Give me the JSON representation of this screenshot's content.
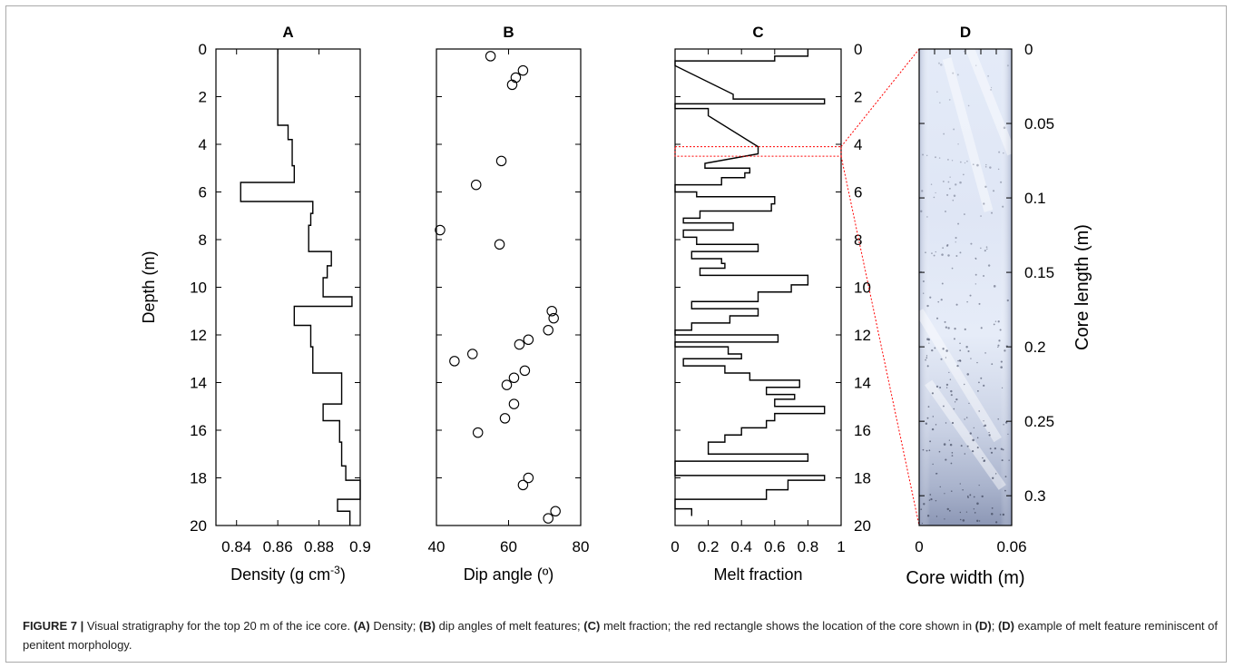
{
  "figure": {
    "caption": {
      "label": "FIGURE 7 |",
      "parts": [
        {
          "t": "Visual stratigraphy for the top 20 m of the ice core. ",
          "b": false
        },
        {
          "t": "(A)",
          "b": true
        },
        {
          "t": " Density; ",
          "b": false
        },
        {
          "t": "(B)",
          "b": true
        },
        {
          "t": " dip angles of melt features; ",
          "b": false
        },
        {
          "t": "(C)",
          "b": true
        },
        {
          "t": " melt fraction; the red rectangle shows the location of the core shown in ",
          "b": false
        },
        {
          "t": "(D)",
          "b": true
        },
        {
          "t": "; ",
          "b": false
        },
        {
          "t": "(D)",
          "b": true
        },
        {
          "t": " example of melt feature reminiscent of penitent morphology.",
          "b": false
        }
      ]
    }
  },
  "colors": {
    "line": "#000000",
    "highlight": "#ff0000",
    "core_light": "#e1e8f6",
    "core_dark": "#8e99b8"
  },
  "chart_data": [
    {
      "panel": "A",
      "type": "line",
      "title": "A",
      "xlabel": "Density (g cm",
      "xlabel_sup": "-3",
      "xlabel_close": ")",
      "ylabel": "Depth (m)",
      "xlim": [
        0.83,
        0.9
      ],
      "ylim": [
        0,
        20
      ],
      "y_reversed": true,
      "xticks": [
        "0.84",
        "0.86",
        "0.88",
        "0.9"
      ],
      "xtick_values": [
        0.84,
        0.86,
        0.88,
        0.9
      ],
      "yticks": [
        "0",
        "2",
        "4",
        "6",
        "8",
        "10",
        "12",
        "14",
        "16",
        "18",
        "20"
      ],
      "ytick_values": [
        0,
        2,
        4,
        6,
        8,
        10,
        12,
        14,
        16,
        18,
        20
      ],
      "step_profile": [
        {
          "top": 0,
          "bottom": 3.2,
          "value": 0.86
        },
        {
          "top": 3.2,
          "bottom": 3.8,
          "value": 0.865
        },
        {
          "top": 3.8,
          "bottom": 4.9,
          "value": 0.867
        },
        {
          "top": 4.9,
          "bottom": 5.6,
          "value": 0.868
        },
        {
          "top": 5.6,
          "bottom": 6.4,
          "value": 0.842
        },
        {
          "top": 6.4,
          "bottom": 6.9,
          "value": 0.877
        },
        {
          "top": 6.9,
          "bottom": 7.4,
          "value": 0.876
        },
        {
          "top": 7.4,
          "bottom": 8.5,
          "value": 0.875
        },
        {
          "top": 8.5,
          "bottom": 9.1,
          "value": 0.886
        },
        {
          "top": 9.1,
          "bottom": 9.6,
          "value": 0.884
        },
        {
          "top": 9.6,
          "bottom": 10.4,
          "value": 0.882
        },
        {
          "top": 10.4,
          "bottom": 10.8,
          "value": 0.896
        },
        {
          "top": 10.8,
          "bottom": 11.6,
          "value": 0.868
        },
        {
          "top": 11.6,
          "bottom": 12.5,
          "value": 0.876
        },
        {
          "top": 12.5,
          "bottom": 13.6,
          "value": 0.877
        },
        {
          "top": 13.6,
          "bottom": 14.9,
          "value": 0.891
        },
        {
          "top": 14.9,
          "bottom": 15.6,
          "value": 0.882
        },
        {
          "top": 15.6,
          "bottom": 16.5,
          "value": 0.89
        },
        {
          "top": 16.5,
          "bottom": 17.5,
          "value": 0.891
        },
        {
          "top": 17.5,
          "bottom": 18.1,
          "value": 0.893
        },
        {
          "top": 18.1,
          "bottom": 18.9,
          "value": 0.9
        },
        {
          "top": 18.9,
          "bottom": 19.4,
          "value": 0.889
        },
        {
          "top": 19.4,
          "bottom": 20,
          "value": 0.895
        }
      ]
    },
    {
      "panel": "B",
      "type": "scatter",
      "title": "B",
      "xlabel": "Dip angle (º)",
      "xlim": [
        40,
        80
      ],
      "ylim": [
        0,
        20
      ],
      "y_reversed": true,
      "xticks": [
        "40",
        "60",
        "80"
      ],
      "xtick_values": [
        40,
        60,
        80
      ],
      "ytick_values": [
        0,
        2,
        4,
        6,
        8,
        10,
        12,
        14,
        16,
        18,
        20
      ],
      "points": [
        {
          "x": 55,
          "y": 0.3
        },
        {
          "x": 64,
          "y": 0.9
        },
        {
          "x": 62,
          "y": 1.2
        },
        {
          "x": 61,
          "y": 1.5
        },
        {
          "x": 58,
          "y": 4.7
        },
        {
          "x": 51,
          "y": 5.7
        },
        {
          "x": 41,
          "y": 7.6
        },
        {
          "x": 57.5,
          "y": 8.2
        },
        {
          "x": 72,
          "y": 11.0
        },
        {
          "x": 72.5,
          "y": 11.3
        },
        {
          "x": 71,
          "y": 11.8
        },
        {
          "x": 65.5,
          "y": 12.2
        },
        {
          "x": 63,
          "y": 12.4
        },
        {
          "x": 50,
          "y": 12.8
        },
        {
          "x": 45,
          "y": 13.1
        },
        {
          "x": 64.5,
          "y": 13.5
        },
        {
          "x": 61.5,
          "y": 13.8
        },
        {
          "x": 59.5,
          "y": 14.1
        },
        {
          "x": 61.5,
          "y": 14.9
        },
        {
          "x": 59,
          "y": 15.5
        },
        {
          "x": 51.5,
          "y": 16.1
        },
        {
          "x": 65.5,
          "y": 18.0
        },
        {
          "x": 64,
          "y": 18.3
        },
        {
          "x": 73,
          "y": 19.4
        },
        {
          "x": 71,
          "y": 19.7
        }
      ]
    },
    {
      "panel": "C",
      "type": "line",
      "title": "C",
      "xlabel": "Melt fraction",
      "xlim": [
        0,
        1
      ],
      "ylim": [
        0,
        20
      ],
      "y_reversed": true,
      "xticks": [
        "0",
        "0.2",
        "0.4",
        "0.6",
        "0.8",
        "1"
      ],
      "xtick_values": [
        0,
        0.2,
        0.4,
        0.6,
        0.8,
        1
      ],
      "yticks": [
        "0",
        "2",
        "4",
        "6",
        "8",
        "10",
        "12",
        "14",
        "16",
        "18",
        "20"
      ],
      "ytick_values": [
        0,
        2,
        4,
        6,
        8,
        10,
        12,
        14,
        16,
        18,
        20
      ],
      "highlight_depth": [
        4.1,
        4.5
      ],
      "step_profile": [
        {
          "top": 0.0,
          "bottom": 0.3,
          "value": 0.8
        },
        {
          "top": 0.3,
          "bottom": 0.5,
          "value": 0.6
        },
        {
          "top": 0.5,
          "bottom": 0.7,
          "value": 0.0
        },
        {
          "top": 1.9,
          "bottom": 2.1,
          "value": 0.35
        },
        {
          "top": 2.1,
          "bottom": 2.3,
          "value": 0.9
        },
        {
          "top": 2.3,
          "bottom": 2.5,
          "value": 0.0
        },
        {
          "top": 2.5,
          "bottom": 2.8,
          "value": 0.2
        },
        {
          "top": 4.1,
          "bottom": 4.4,
          "value": 0.5
        },
        {
          "top": 4.8,
          "bottom": 5.0,
          "value": 0.18
        },
        {
          "top": 5.0,
          "bottom": 5.2,
          "value": 0.45
        },
        {
          "top": 5.2,
          "bottom": 5.4,
          "value": 0.42
        },
        {
          "top": 5.4,
          "bottom": 5.7,
          "value": 0.28
        },
        {
          "top": 5.7,
          "bottom": 6.0,
          "value": 0.0
        },
        {
          "top": 6.0,
          "bottom": 6.2,
          "value": 0.13
        },
        {
          "top": 6.2,
          "bottom": 6.5,
          "value": 0.6
        },
        {
          "top": 6.5,
          "bottom": 6.8,
          "value": 0.58
        },
        {
          "top": 6.8,
          "bottom": 7.1,
          "value": 0.15
        },
        {
          "top": 7.1,
          "bottom": 7.3,
          "value": 0.05
        },
        {
          "top": 7.3,
          "bottom": 7.6,
          "value": 0.35
        },
        {
          "top": 7.6,
          "bottom": 7.9,
          "value": 0.05
        },
        {
          "top": 7.9,
          "bottom": 8.2,
          "value": 0.13
        },
        {
          "top": 8.2,
          "bottom": 8.5,
          "value": 0.5
        },
        {
          "top": 8.5,
          "bottom": 8.8,
          "value": 0.1
        },
        {
          "top": 8.8,
          "bottom": 9.0,
          "value": 0.28
        },
        {
          "top": 9.0,
          "bottom": 9.2,
          "value": 0.3
        },
        {
          "top": 9.2,
          "bottom": 9.5,
          "value": 0.15
        },
        {
          "top": 9.5,
          "bottom": 9.9,
          "value": 0.8
        },
        {
          "top": 9.9,
          "bottom": 10.2,
          "value": 0.7
        },
        {
          "top": 10.2,
          "bottom": 10.6,
          "value": 0.5
        },
        {
          "top": 10.6,
          "bottom": 10.9,
          "value": 0.1
        },
        {
          "top": 10.9,
          "bottom": 11.2,
          "value": 0.5
        },
        {
          "top": 11.2,
          "bottom": 11.5,
          "value": 0.33
        },
        {
          "top": 11.5,
          "bottom": 11.8,
          "value": 0.1
        },
        {
          "top": 11.8,
          "bottom": 12.0,
          "value": 0.0
        },
        {
          "top": 12.0,
          "bottom": 12.3,
          "value": 0.62
        },
        {
          "top": 12.3,
          "bottom": 12.5,
          "value": 0.0
        },
        {
          "top": 12.5,
          "bottom": 12.8,
          "value": 0.32
        },
        {
          "top": 12.8,
          "bottom": 13.0,
          "value": 0.4
        },
        {
          "top": 13.0,
          "bottom": 13.3,
          "value": 0.05
        },
        {
          "top": 13.3,
          "bottom": 13.6,
          "value": 0.3
        },
        {
          "top": 13.6,
          "bottom": 13.9,
          "value": 0.45
        },
        {
          "top": 13.9,
          "bottom": 14.2,
          "value": 0.75
        },
        {
          "top": 14.2,
          "bottom": 14.5,
          "value": 0.55
        },
        {
          "top": 14.5,
          "bottom": 14.7,
          "value": 0.72
        },
        {
          "top": 14.7,
          "bottom": 15.0,
          "value": 0.6
        },
        {
          "top": 15.0,
          "bottom": 15.3,
          "value": 0.9
        },
        {
          "top": 15.3,
          "bottom": 15.6,
          "value": 0.6
        },
        {
          "top": 15.6,
          "bottom": 15.9,
          "value": 0.55
        },
        {
          "top": 15.9,
          "bottom": 16.2,
          "value": 0.4
        },
        {
          "top": 16.2,
          "bottom": 16.5,
          "value": 0.3
        },
        {
          "top": 16.5,
          "bottom": 17.0,
          "value": 0.2
        },
        {
          "top": 17.0,
          "bottom": 17.3,
          "value": 0.8
        },
        {
          "top": 17.3,
          "bottom": 17.6,
          "value": 0.0
        },
        {
          "top": 17.6,
          "bottom": 17.9,
          "value": 0.0
        },
        {
          "top": 17.9,
          "bottom": 18.1,
          "value": 0.9
        },
        {
          "top": 18.1,
          "bottom": 18.5,
          "value": 0.68
        },
        {
          "top": 18.5,
          "bottom": 18.9,
          "value": 0.55
        },
        {
          "top": 18.9,
          "bottom": 19.3,
          "value": 0.0
        },
        {
          "top": 19.3,
          "bottom": 19.6,
          "value": 0.1
        }
      ]
    },
    {
      "panel": "D",
      "type": "image",
      "title": "D",
      "xlabel": "Core width (m)",
      "ylabel": "Core length (m)",
      "xlim": [
        0,
        0.06
      ],
      "ylim": [
        0,
        0.32
      ],
      "y_reversed": true,
      "xticks": [
        "0",
        "0.06"
      ],
      "xtick_values": [
        0,
        0.06
      ],
      "yticks": [
        "0",
        "0.05",
        "0.1",
        "0.15",
        "0.2",
        "0.25",
        "0.3"
      ],
      "ytick_values": [
        0,
        0.05,
        0.1,
        0.15,
        0.2,
        0.25,
        0.3
      ]
    }
  ]
}
